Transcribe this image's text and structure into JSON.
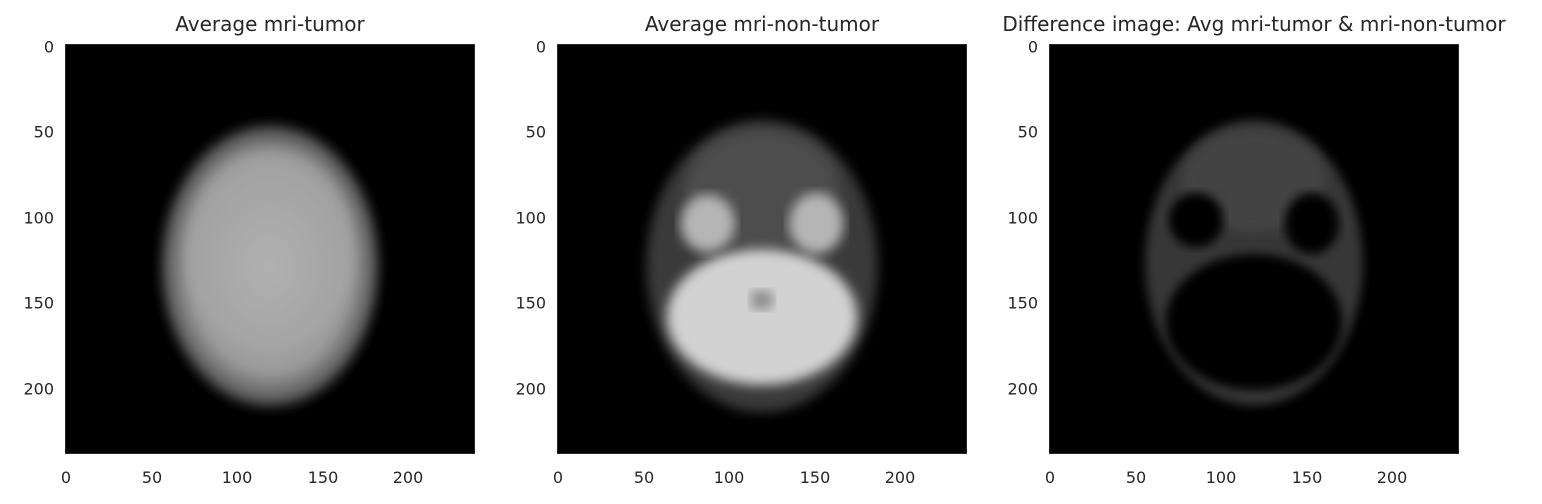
{
  "figure": {
    "panels": [
      {
        "title": "Average mri-tumor",
        "kind": "tumor"
      },
      {
        "title": "Average mri-non-tumor",
        "kind": "nontumor"
      },
      {
        "title": "Difference image: Avg mri-tumor & mri-non-tumor",
        "kind": "diff"
      }
    ],
    "axes": {
      "xlim": [
        0,
        240
      ],
      "ylim": [
        0,
        240
      ],
      "x_ticks": [
        "0",
        "50",
        "100",
        "150",
        "200"
      ],
      "y_ticks": [
        "0",
        "50",
        "100",
        "150",
        "200"
      ]
    },
    "colormap": "gray",
    "background_color": "#000000"
  }
}
